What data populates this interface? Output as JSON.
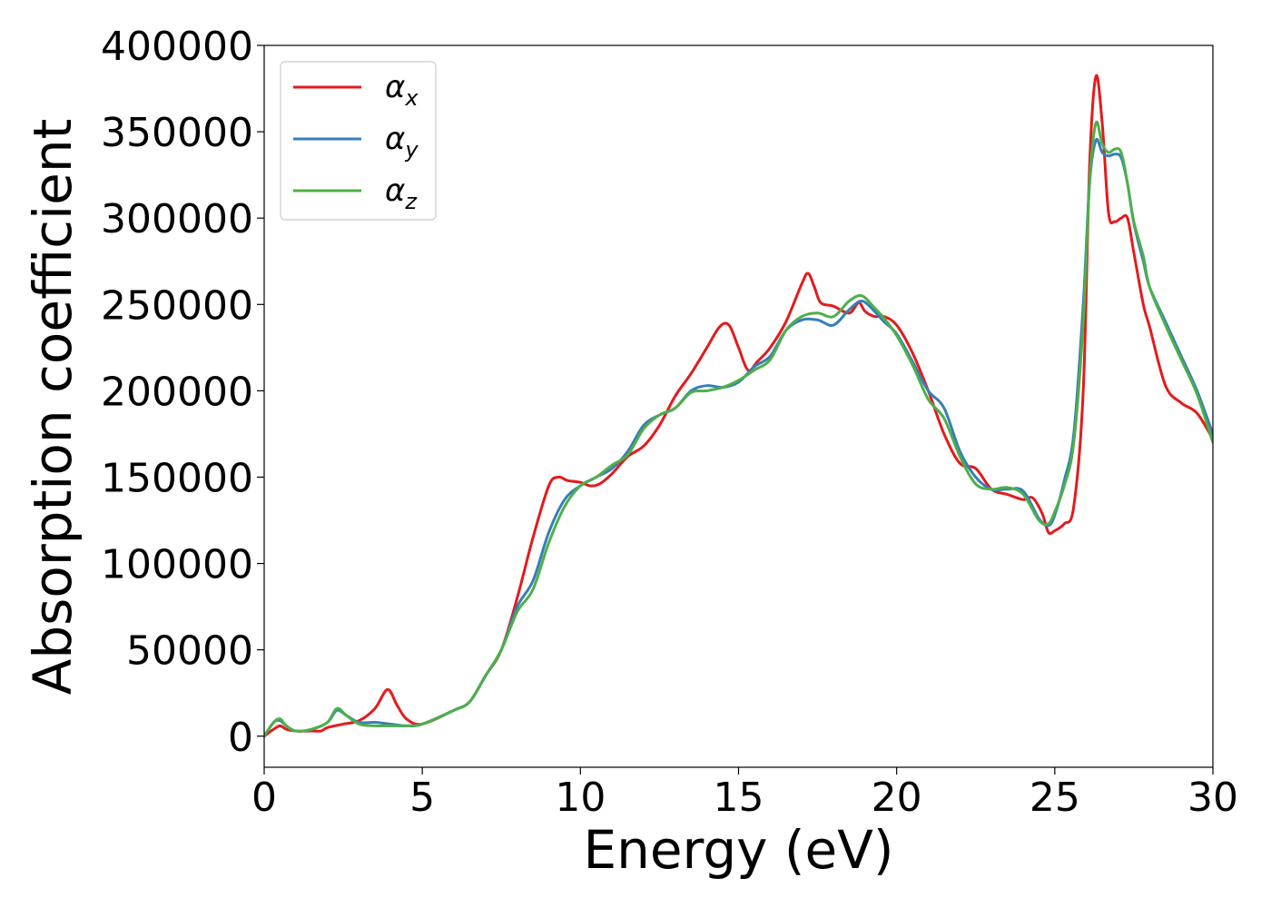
{
  "chart_data": {
    "type": "line",
    "xlabel": "Energy (eV)",
    "ylabel": "Absorption coefficient",
    "xlim": [
      0,
      30
    ],
    "ylim": [
      -18000,
      400000
    ],
    "xticks": [
      0,
      5,
      10,
      15,
      20,
      25,
      30
    ],
    "xtick_labels": [
      "0",
      "5",
      "10",
      "15",
      "20",
      "25",
      "30"
    ],
    "yticks": [
      0,
      50000,
      100000,
      150000,
      200000,
      250000,
      300000,
      350000,
      400000
    ],
    "ytick_labels": [
      "0",
      "50000",
      "100000",
      "150000",
      "200000",
      "250000",
      "300000",
      "350000",
      "400000"
    ],
    "grid": false,
    "legend_position": "top-left",
    "series": [
      {
        "name": "α",
        "subscript": "x",
        "color": "#e41a1c",
        "x": [
          0,
          0.3,
          0.5,
          0.7,
          1.0,
          1.5,
          1.8,
          2.0,
          2.5,
          3.0,
          3.5,
          3.9,
          4.2,
          4.5,
          5.0,
          6.0,
          6.5,
          7.0,
          7.5,
          8.0,
          8.5,
          9.0,
          9.3,
          9.6,
          10.0,
          10.3,
          10.6,
          11.0,
          11.5,
          12.0,
          12.5,
          13.0,
          13.5,
          14.0,
          14.4,
          14.7,
          15.0,
          15.3,
          15.6,
          16.0,
          16.5,
          17.0,
          17.2,
          17.4,
          17.6,
          18.0,
          18.5,
          18.8,
          19.0,
          19.3,
          19.6,
          20.0,
          20.5,
          21.0,
          21.5,
          22.0,
          22.5,
          23.0,
          23.5,
          24.0,
          24.3,
          24.6,
          24.8,
          25.0,
          25.3,
          25.6,
          25.9,
          26.1,
          26.3,
          26.5,
          26.7,
          26.9,
          27.1,
          27.3,
          27.5,
          27.8,
          28.0,
          28.5,
          29.0,
          29.5,
          30.0
        ],
        "y": [
          0,
          4000,
          6000,
          4000,
          3000,
          3000,
          3000,
          5000,
          7000,
          9000,
          16000,
          27000,
          18000,
          10000,
          7000,
          15000,
          20000,
          35000,
          50000,
          80000,
          115000,
          145000,
          150000,
          148000,
          147000,
          145000,
          146000,
          152000,
          162000,
          168000,
          180000,
          197000,
          210000,
          225000,
          237000,
          238000,
          225000,
          212000,
          217000,
          225000,
          240000,
          262000,
          268000,
          260000,
          251000,
          249000,
          245000,
          251000,
          246000,
          243000,
          243000,
          238000,
          222000,
          200000,
          175000,
          158000,
          155000,
          143000,
          140000,
          137000,
          138000,
          129000,
          118000,
          119000,
          123000,
          133000,
          200000,
          330000,
          382000,
          355000,
          303000,
          298000,
          300000,
          300000,
          280000,
          250000,
          237000,
          203000,
          193000,
          187000,
          172000
        ]
      },
      {
        "name": "α",
        "subscript": "y",
        "color": "#377eb8",
        "x": [
          0,
          0.3,
          0.5,
          0.7,
          1.0,
          1.5,
          2.0,
          2.3,
          2.6,
          3.0,
          3.5,
          4.0,
          4.5,
          5.0,
          6.0,
          6.5,
          7.0,
          7.5,
          8.0,
          8.5,
          9.0,
          9.5,
          10.0,
          10.5,
          11.0,
          11.5,
          12.0,
          12.5,
          13.0,
          13.5,
          14.0,
          14.5,
          15.0,
          15.5,
          16.0,
          16.5,
          17.0,
          17.5,
          18.0,
          18.5,
          18.9,
          19.3,
          19.6,
          20.0,
          20.5,
          21.0,
          21.5,
          22.0,
          22.5,
          23.0,
          23.5,
          24.0,
          24.5,
          24.8,
          25.0,
          25.3,
          25.6,
          25.9,
          26.1,
          26.3,
          26.5,
          26.7,
          26.9,
          27.1,
          27.3,
          27.5,
          27.8,
          28.0,
          28.5,
          29.0,
          29.5,
          30.0
        ],
        "y": [
          0,
          8000,
          9000,
          6000,
          3000,
          4000,
          8000,
          15000,
          12000,
          8000,
          8000,
          7000,
          6000,
          7000,
          15000,
          20000,
          35000,
          50000,
          75000,
          90000,
          118000,
          137000,
          145000,
          150000,
          155000,
          165000,
          180000,
          186000,
          190000,
          200000,
          203000,
          202000,
          205000,
          214000,
          220000,
          235000,
          241000,
          241000,
          238000,
          247000,
          252000,
          246000,
          240000,
          233000,
          217000,
          200000,
          190000,
          165000,
          150000,
          143000,
          143000,
          142000,
          126000,
          122000,
          128000,
          148000,
          175000,
          250000,
          320000,
          345000,
          338000,
          336000,
          337000,
          335000,
          320000,
          297000,
          275000,
          260000,
          240000,
          220000,
          200000,
          175000
        ]
      },
      {
        "name": "α",
        "subscript": "z",
        "color": "#4daf4a",
        "x": [
          0,
          0.3,
          0.5,
          0.7,
          1.0,
          1.5,
          2.0,
          2.3,
          2.6,
          3.0,
          3.5,
          4.0,
          4.5,
          5.0,
          6.0,
          6.5,
          7.0,
          7.5,
          8.0,
          8.5,
          9.0,
          9.5,
          10.0,
          10.5,
          11.0,
          11.5,
          12.0,
          12.5,
          13.0,
          13.5,
          14.0,
          14.5,
          15.0,
          15.5,
          16.0,
          16.5,
          17.0,
          17.5,
          18.0,
          18.5,
          18.9,
          19.3,
          19.6,
          20.0,
          20.5,
          21.0,
          21.5,
          22.0,
          22.5,
          23.0,
          23.5,
          24.0,
          24.5,
          24.8,
          25.0,
          25.3,
          25.6,
          25.9,
          26.1,
          26.3,
          26.5,
          26.7,
          26.9,
          27.1,
          27.3,
          27.5,
          27.8,
          28.0,
          28.5,
          29.0,
          29.5,
          30.0
        ],
        "y": [
          0,
          8000,
          10000,
          6000,
          3000,
          4000,
          8000,
          16000,
          12000,
          7000,
          6000,
          6000,
          6000,
          7000,
          15000,
          20000,
          35000,
          50000,
          72000,
          85000,
          112000,
          133000,
          145000,
          150000,
          157000,
          163000,
          178000,
          186000,
          190000,
          199000,
          200000,
          202000,
          206000,
          212000,
          218000,
          235000,
          243000,
          245000,
          243000,
          252000,
          255000,
          248000,
          242000,
          232000,
          215000,
          195000,
          184000,
          162000,
          146000,
          143000,
          144000,
          140000,
          125000,
          123000,
          130000,
          145000,
          170000,
          240000,
          320000,
          355000,
          343000,
          338000,
          340000,
          338000,
          320000,
          298000,
          278000,
          260000,
          238000,
          218000,
          198000,
          170000
        ]
      }
    ]
  }
}
